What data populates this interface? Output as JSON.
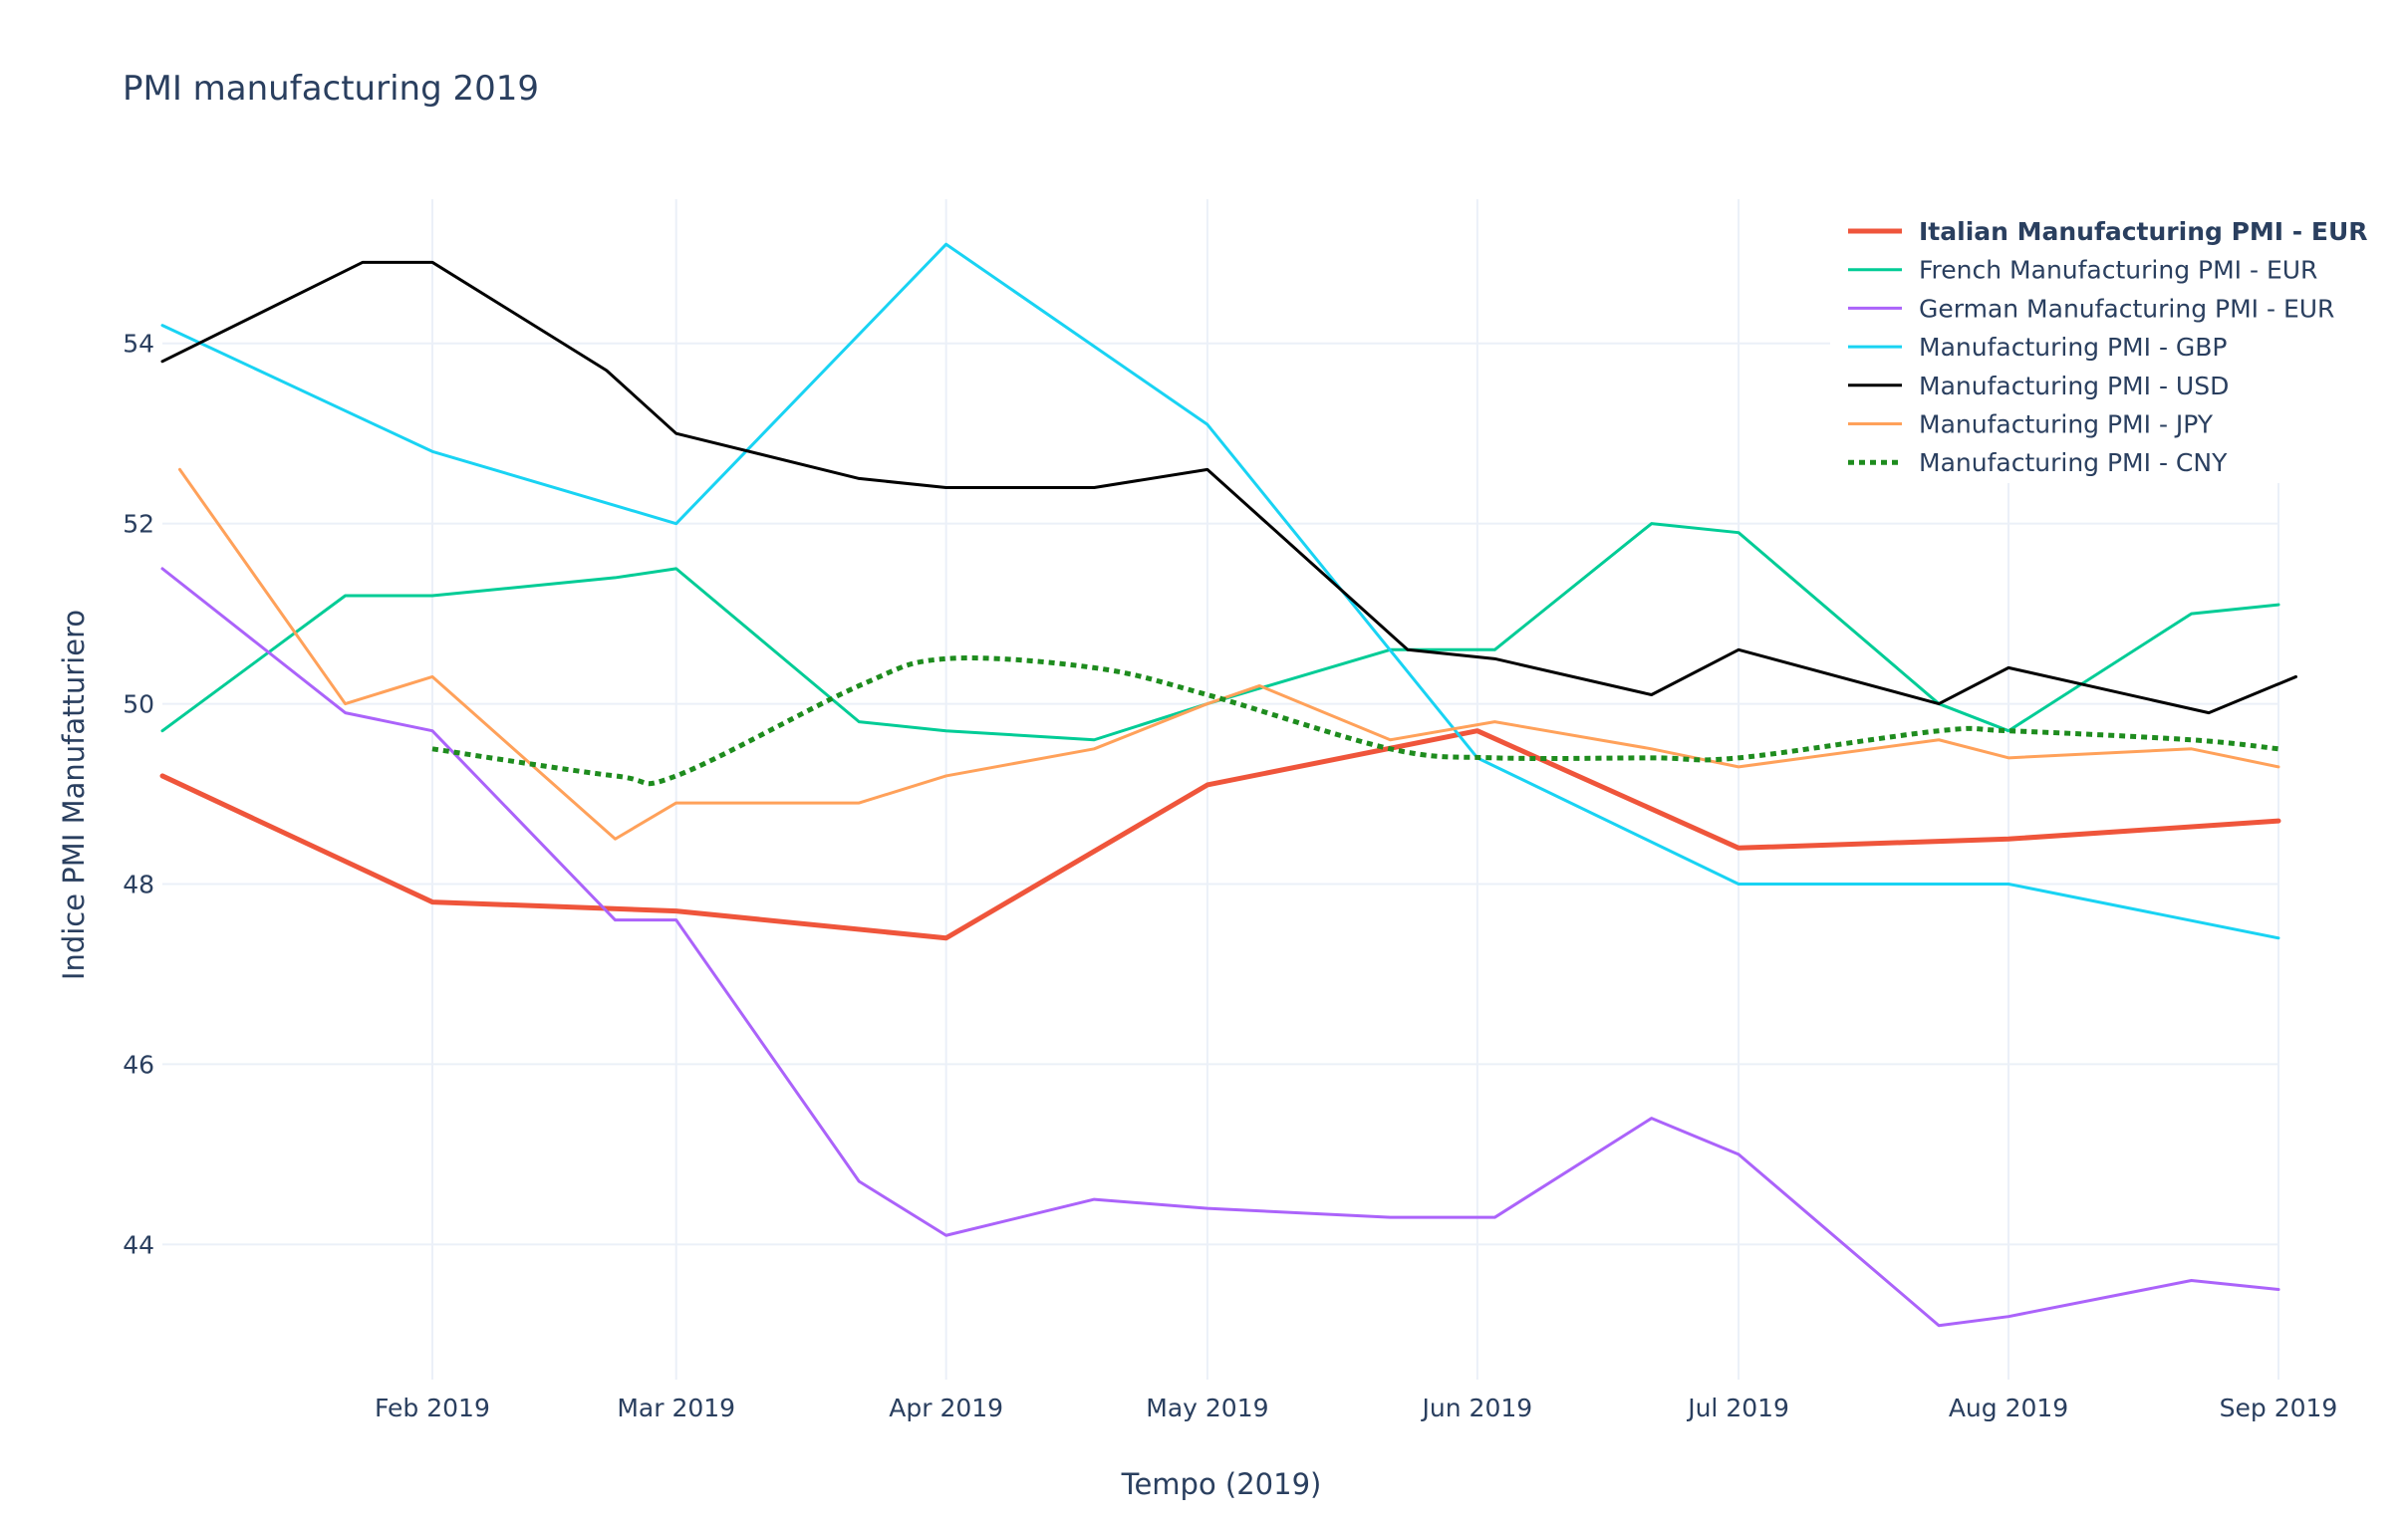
{
  "chart_data": {
    "type": "line",
    "title": "PMI manufacturing 2019",
    "xlabel": "Tempo (2019)",
    "ylabel": "Indice PMI Manufatturiero",
    "xlim": [
      "2019-01-01",
      "2019-09-01"
    ],
    "ylim": [
      42.5,
      55.6
    ],
    "x_ticks": [
      {
        "date": "2019-02-01",
        "label": "Feb 2019"
      },
      {
        "date": "2019-03-01",
        "label": "Mar 2019"
      },
      {
        "date": "2019-04-01",
        "label": "Apr 2019"
      },
      {
        "date": "2019-05-01",
        "label": "May 2019"
      },
      {
        "date": "2019-06-01",
        "label": "Jun 2019"
      },
      {
        "date": "2019-07-01",
        "label": "Jul 2019"
      },
      {
        "date": "2019-08-01",
        "label": "Aug 2019"
      },
      {
        "date": "2019-09-01",
        "label": "Sep 2019"
      }
    ],
    "y_ticks": [
      44,
      46,
      48,
      50,
      52,
      54
    ],
    "grid": true,
    "legend_position": "top-right",
    "series": [
      {
        "name": "Italian Manufacturing PMI - EUR",
        "color": "#ef553b",
        "dash": "solid",
        "bold": true,
        "width": "thick",
        "points": [
          [
            "2019-01-01",
            49.2
          ],
          [
            "2019-02-01",
            47.8
          ],
          [
            "2019-03-01",
            47.7
          ],
          [
            "2019-04-01",
            47.4
          ],
          [
            "2019-05-01",
            49.1
          ],
          [
            "2019-06-01",
            49.7
          ],
          [
            "2019-07-01",
            48.4
          ],
          [
            "2019-08-01",
            48.5
          ],
          [
            "2019-09-01",
            48.7
          ]
        ]
      },
      {
        "name": "French Manufacturing PMI - EUR",
        "color": "#00cc96",
        "dash": "solid",
        "bold": false,
        "width": "normal",
        "points": [
          [
            "2019-01-01",
            49.7
          ],
          [
            "2019-01-22",
            51.2
          ],
          [
            "2019-02-01",
            51.2
          ],
          [
            "2019-02-22",
            51.4
          ],
          [
            "2019-03-01",
            51.5
          ],
          [
            "2019-03-22",
            49.8
          ],
          [
            "2019-04-01",
            49.7
          ],
          [
            "2019-04-18",
            49.6
          ],
          [
            "2019-05-01",
            50.0
          ],
          [
            "2019-05-22",
            50.6
          ],
          [
            "2019-06-03",
            50.6
          ],
          [
            "2019-06-21",
            52.0
          ],
          [
            "2019-07-01",
            51.9
          ],
          [
            "2019-07-24",
            50.0
          ],
          [
            "2019-08-01",
            49.7
          ],
          [
            "2019-08-22",
            51.0
          ],
          [
            "2019-09-01",
            51.1
          ]
        ]
      },
      {
        "name": "German Manufacturing PMI - EUR",
        "color": "#ab63fa",
        "dash": "solid",
        "bold": false,
        "width": "normal",
        "points": [
          [
            "2019-01-01",
            51.5
          ],
          [
            "2019-01-22",
            49.9
          ],
          [
            "2019-02-01",
            49.7
          ],
          [
            "2019-02-22",
            47.6
          ],
          [
            "2019-03-01",
            47.6
          ],
          [
            "2019-03-22",
            44.7
          ],
          [
            "2019-04-01",
            44.1
          ],
          [
            "2019-04-18",
            44.5
          ],
          [
            "2019-05-01",
            44.4
          ],
          [
            "2019-05-22",
            44.3
          ],
          [
            "2019-06-03",
            44.3
          ],
          [
            "2019-06-21",
            45.4
          ],
          [
            "2019-07-01",
            45.0
          ],
          [
            "2019-07-24",
            43.1
          ],
          [
            "2019-08-01",
            43.2
          ],
          [
            "2019-08-22",
            43.6
          ],
          [
            "2019-09-01",
            43.5
          ]
        ]
      },
      {
        "name": "Manufacturing PMI - GBP",
        "color": "#19d3f3",
        "dash": "solid",
        "bold": false,
        "width": "normal",
        "points": [
          [
            "2019-01-01",
            54.2
          ],
          [
            "2019-02-01",
            52.8
          ],
          [
            "2019-03-01",
            52.0
          ],
          [
            "2019-04-01",
            55.1
          ],
          [
            "2019-05-01",
            53.1
          ],
          [
            "2019-06-01",
            49.4
          ],
          [
            "2019-07-01",
            48.0
          ],
          [
            "2019-08-01",
            48.0
          ],
          [
            "2019-09-01",
            47.4
          ]
        ]
      },
      {
        "name": "Manufacturing PMI - USD",
        "color": "#000000",
        "dash": "solid",
        "bold": false,
        "width": "normal",
        "points": [
          [
            "2019-01-01",
            53.8
          ],
          [
            "2019-01-24",
            54.9
          ],
          [
            "2019-02-01",
            54.9
          ],
          [
            "2019-02-21",
            53.7
          ],
          [
            "2019-03-01",
            53.0
          ],
          [
            "2019-03-22",
            52.5
          ],
          [
            "2019-04-01",
            52.4
          ],
          [
            "2019-04-18",
            52.4
          ],
          [
            "2019-05-01",
            52.6
          ],
          [
            "2019-05-24",
            50.6
          ],
          [
            "2019-06-03",
            50.5
          ],
          [
            "2019-06-21",
            50.1
          ],
          [
            "2019-07-01",
            50.6
          ],
          [
            "2019-07-24",
            50.0
          ],
          [
            "2019-08-01",
            50.4
          ],
          [
            "2019-08-24",
            49.9
          ],
          [
            "2019-09-03",
            50.3
          ]
        ]
      },
      {
        "name": "Manufacturing PMI - JPY",
        "color": "#ffa15a",
        "dash": "solid",
        "bold": false,
        "width": "normal",
        "points": [
          [
            "2019-01-03",
            52.6
          ],
          [
            "2019-01-22",
            50.0
          ],
          [
            "2019-02-01",
            50.3
          ],
          [
            "2019-02-22",
            48.5
          ],
          [
            "2019-03-01",
            48.9
          ],
          [
            "2019-03-22",
            48.9
          ],
          [
            "2019-04-01",
            49.2
          ],
          [
            "2019-04-18",
            49.5
          ],
          [
            "2019-05-01",
            50.0
          ],
          [
            "2019-05-07",
            50.2
          ],
          [
            "2019-05-22",
            49.6
          ],
          [
            "2019-06-03",
            49.8
          ],
          [
            "2019-06-21",
            49.5
          ],
          [
            "2019-07-01",
            49.3
          ],
          [
            "2019-07-24",
            49.6
          ],
          [
            "2019-08-01",
            49.4
          ],
          [
            "2019-08-22",
            49.5
          ],
          [
            "2019-09-01",
            49.3
          ]
        ]
      },
      {
        "name": "Manufacturing PMI - CNY",
        "color": "#1e8c1e",
        "dash": "dot",
        "bold": false,
        "width": "thick",
        "smooth": true,
        "points": [
          [
            "2019-02-01",
            49.5
          ],
          [
            "2019-02-22",
            49.2
          ],
          [
            "2019-03-01",
            49.2
          ],
          [
            "2019-03-22",
            50.2
          ],
          [
            "2019-04-01",
            50.5
          ],
          [
            "2019-04-18",
            50.4
          ],
          [
            "2019-05-01",
            50.1
          ],
          [
            "2019-05-22",
            49.5
          ],
          [
            "2019-06-03",
            49.4
          ],
          [
            "2019-06-21",
            49.4
          ],
          [
            "2019-07-01",
            49.4
          ],
          [
            "2019-07-24",
            49.7
          ],
          [
            "2019-08-01",
            49.7
          ],
          [
            "2019-08-22",
            49.6
          ],
          [
            "2019-09-01",
            49.5
          ]
        ]
      }
    ]
  }
}
